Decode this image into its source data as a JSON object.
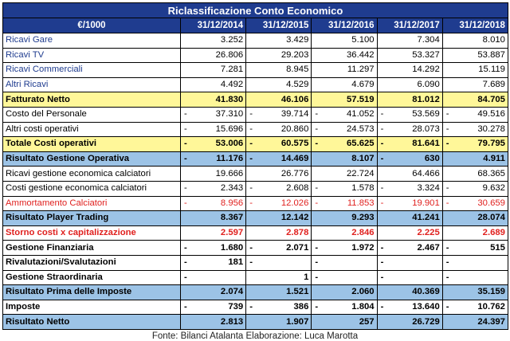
{
  "title": "Riclassificazione Conto Economico",
  "header": {
    "unit": "€/1000",
    "years": [
      "31/12/2014",
      "31/12/2015",
      "31/12/2016",
      "31/12/2017",
      "31/12/2018"
    ]
  },
  "rows": [
    {
      "label": "Ricavi Gare",
      "style": "blue",
      "dash": [
        false,
        false,
        false,
        false,
        false
      ],
      "values": [
        "3.252",
        "3.429",
        "5.100",
        "7.304",
        "8.010"
      ]
    },
    {
      "label": "Ricavi TV",
      "style": "blue",
      "dash": [
        false,
        false,
        false,
        false,
        false
      ],
      "values": [
        "26.806",
        "29.203",
        "36.442",
        "53.327",
        "53.887"
      ]
    },
    {
      "label": "Ricavi Commerciali",
      "style": "blue",
      "dash": [
        false,
        false,
        false,
        false,
        false
      ],
      "values": [
        "7.281",
        "8.945",
        "11.297",
        "14.292",
        "15.119"
      ]
    },
    {
      "label": "Altri Ricavi",
      "style": "blue",
      "dash": [
        false,
        false,
        false,
        false,
        false
      ],
      "values": [
        "4.492",
        "4.529",
        "4.679",
        "6.090",
        "7.689"
      ]
    },
    {
      "label": "Fatturato Netto",
      "style": "yellow",
      "dash": [
        false,
        false,
        false,
        false,
        false
      ],
      "values": [
        "41.830",
        "46.106",
        "57.519",
        "81.012",
        "84.705"
      ]
    },
    {
      "label": "Costo del Personale",
      "style": "plain",
      "dash": [
        true,
        true,
        true,
        true,
        true
      ],
      "values": [
        "37.310",
        "39.714",
        "41.052",
        "53.569",
        "49.516"
      ]
    },
    {
      "label": "Altri costi operativi",
      "style": "plain",
      "dash": [
        true,
        true,
        true,
        true,
        true
      ],
      "values": [
        "15.696",
        "20.860",
        "24.573",
        "28.073",
        "30.278"
      ]
    },
    {
      "label": "Totale Costi operativi",
      "style": "yellow",
      "dash": [
        true,
        true,
        true,
        true,
        true
      ],
      "values": [
        "53.006",
        "60.575",
        "65.625",
        "81.641",
        "79.795"
      ]
    },
    {
      "label": "Risultato Gestione Operativa",
      "style": "lightblue",
      "dash": [
        true,
        true,
        false,
        true,
        false
      ],
      "values": [
        "11.176",
        "14.469",
        "8.107",
        "630",
        "4.911"
      ]
    },
    {
      "label": "Ricavi gestione economica calciatori",
      "style": "plain",
      "dash": [
        false,
        false,
        false,
        false,
        false
      ],
      "values": [
        "19.666",
        "26.776",
        "22.724",
        "64.466",
        "68.365"
      ]
    },
    {
      "label": "Costi gestione economica calciatori",
      "style": "plain",
      "dash": [
        true,
        true,
        true,
        true,
        true
      ],
      "values": [
        "2.343",
        "2.608",
        "1.578",
        "3.324",
        "9.632"
      ]
    },
    {
      "label": "Ammortamento Calciatori",
      "style": "red",
      "dash": [
        true,
        true,
        true,
        true,
        true
      ],
      "values": [
        "8.956",
        "12.026",
        "11.853",
        "19.901",
        "30.659"
      ]
    },
    {
      "label": "Risultato Player Trading",
      "style": "lightblue",
      "dash": [
        false,
        false,
        false,
        false,
        false
      ],
      "values": [
        "8.367",
        "12.142",
        "9.293",
        "41.241",
        "28.074"
      ]
    },
    {
      "label": "Storno costi x capitalizzazione",
      "style": "red-bold",
      "dash": [
        false,
        false,
        false,
        false,
        false
      ],
      "values": [
        "2.597",
        "2.878",
        "2.846",
        "2.225",
        "2.689"
      ]
    },
    {
      "label": "Gestione Finanziaria",
      "style": "bold",
      "dash": [
        true,
        true,
        true,
        true,
        true
      ],
      "values": [
        "1.680",
        "2.071",
        "1.972",
        "2.467",
        "515"
      ]
    },
    {
      "label": "Rivalutazioni/Svalutazioni",
      "style": "bold",
      "dash": [
        true,
        true,
        true,
        true,
        true
      ],
      "values": [
        "181",
        "",
        "",
        "",
        ""
      ]
    },
    {
      "label": "Gestione Straordinaria",
      "style": "bold",
      "dash": [
        true,
        false,
        true,
        true,
        true
      ],
      "values": [
        "",
        "1",
        "",
        "",
        ""
      ]
    },
    {
      "label": "Risultato Prima delle Imposte",
      "style": "lightblue",
      "dash": [
        false,
        false,
        false,
        false,
        false
      ],
      "values": [
        "2.074",
        "1.521",
        "2.060",
        "40.369",
        "35.159"
      ]
    },
    {
      "label": "Imposte",
      "style": "bold",
      "dash": [
        true,
        true,
        true,
        true,
        true
      ],
      "values": [
        "739",
        "386",
        "1.804",
        "13.640",
        "10.762"
      ]
    },
    {
      "label": "Risultato Netto",
      "style": "lightblue",
      "dash": [
        false,
        false,
        false,
        false,
        false
      ],
      "values": [
        "2.813",
        "1.907",
        "257",
        "26.729",
        "24.397"
      ]
    }
  ],
  "source_note": "Fonte: Bilanci Atalanta   Elaborazione: Luca Marotta",
  "dash_symbol": "-"
}
